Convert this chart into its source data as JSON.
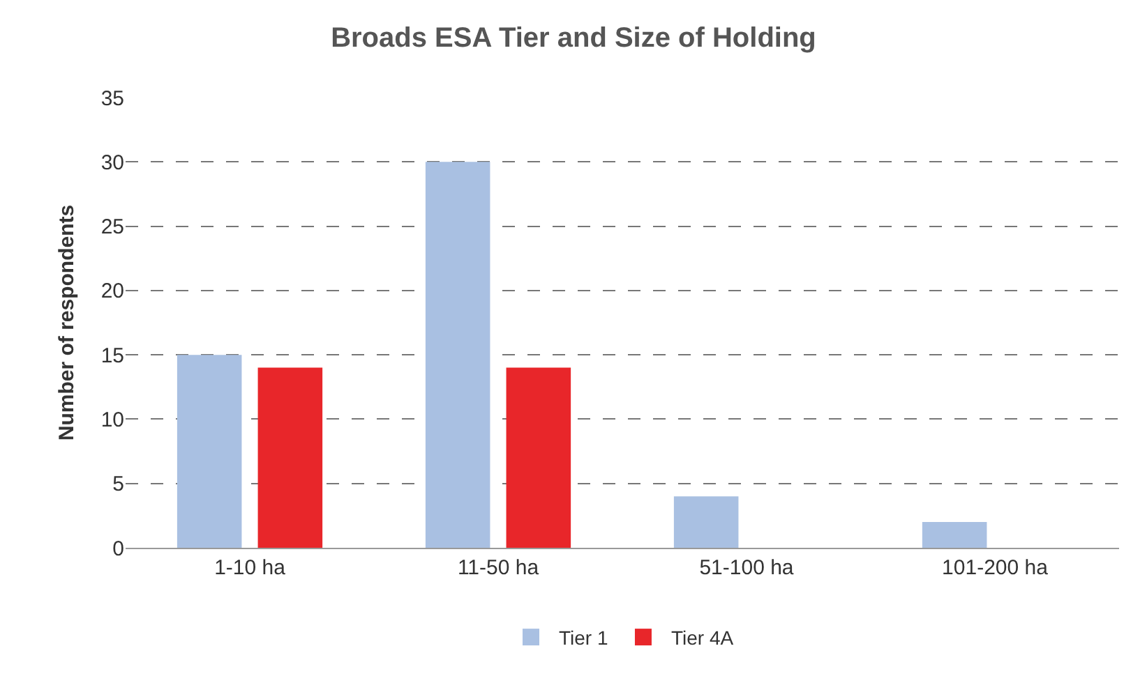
{
  "chart_data": {
    "type": "bar",
    "title": "Broads ESA Tier and Size of Holding",
    "ylabel": "Number of respondents",
    "categories": [
      "1-10 ha",
      "11-50 ha",
      "51-100 ha",
      "101-200 ha"
    ],
    "series": [
      {
        "name": "Tier 1",
        "color": "#a9c0e2",
        "values": [
          15,
          30,
          4,
          2
        ]
      },
      {
        "name": "Tier 4A",
        "color": "#e8262a",
        "values": [
          14,
          14,
          0,
          0
        ]
      }
    ],
    "ylim": [
      0,
      35
    ],
    "yticks": [
      0,
      5,
      10,
      15,
      20,
      25,
      30,
      35
    ],
    "grid": "y",
    "legend": "bottom"
  }
}
